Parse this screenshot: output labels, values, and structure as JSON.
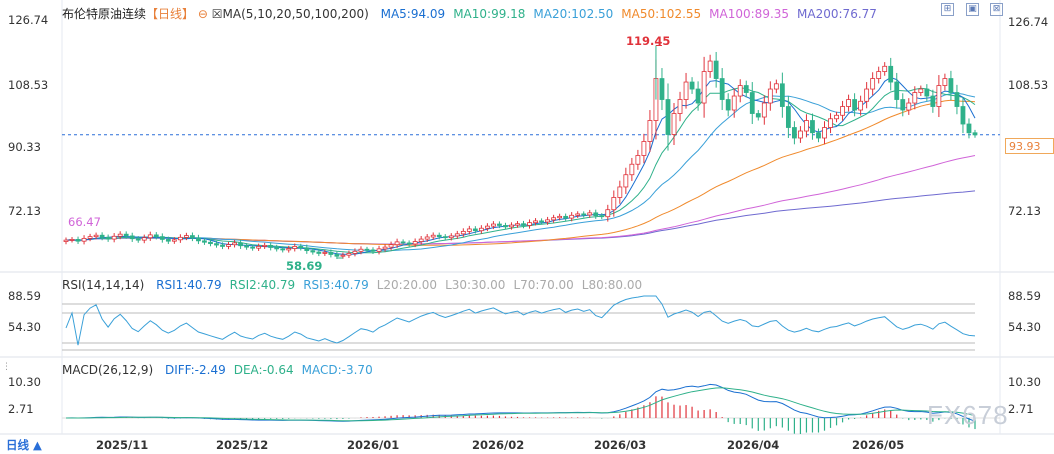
{
  "header": {
    "title": "布伦特原油连续",
    "period": "【日线】",
    "ma_label": "MA(5,10,20,50,100,200)",
    "ma": [
      {
        "text": "MA5:94.09",
        "color": "#1a6fd1"
      },
      {
        "text": "MA10:99.18",
        "color": "#2fb18a"
      },
      {
        "text": "MA20:102.50",
        "color": "#3aa0d8"
      },
      {
        "text": "MA50:102.55",
        "color": "#f08a2c"
      },
      {
        "text": "MA100:89.35",
        "color": "#d064d8"
      },
      {
        "text": "MA200:76.77",
        "color": "#6f6ad0"
      }
    ]
  },
  "toolbar": {
    "icons": [
      "expand-icon",
      "grid-icon",
      "close-icon"
    ]
  },
  "price_axis": {
    "ticks": [
      "126.74",
      "108.53",
      "90.33",
      "72.13"
    ],
    "last_price": "93.93"
  },
  "annotations": {
    "high": "119.45",
    "low": "58.69",
    "left": "66.47"
  },
  "rsi": {
    "label": "RSI(14,14,14)",
    "items": [
      {
        "text": "RSI1:40.79",
        "color": "#1a6fd1"
      },
      {
        "text": "RSI2:40.79",
        "color": "#2fb18a"
      },
      {
        "text": "RSI3:40.79",
        "color": "#3aa0d8"
      },
      {
        "text": "L20:20.00",
        "color": "#aaaaaa"
      },
      {
        "text": "L30:30.00",
        "color": "#aaaaaa"
      },
      {
        "text": "L70:70.00",
        "color": "#aaaaaa"
      },
      {
        "text": "L80:80.00",
        "color": "#aaaaaa"
      }
    ],
    "ticks": [
      "88.59",
      "54.30"
    ]
  },
  "macd": {
    "label": "MACD(26,12,9)",
    "items": [
      {
        "text": "DIFF:-2.49",
        "color": "#1a6fd1"
      },
      {
        "text": "DEA:-0.64",
        "color": "#2fb18a"
      },
      {
        "text": "MACD:-3.70",
        "color": "#3aa0d8"
      }
    ],
    "ticks": [
      "10.30",
      "2.71"
    ]
  },
  "time_axis": [
    "2025/11",
    "2025/12",
    "2026/01",
    "2026/02",
    "2026/03",
    "2026/04",
    "2026/05"
  ],
  "watermark": "FX678",
  "chart_data": {
    "type": "candlestick",
    "title": "布伦特原油连续",
    "y_ticks": [
      126.74,
      108.53,
      90.33,
      72.13
    ],
    "last_price": 93.93,
    "high": 119.45,
    "low": 58.69,
    "ma_values": {
      "MA5": 94.09,
      "MA10": 99.18,
      "MA20": 102.5,
      "MA50": 102.55,
      "MA100": 89.35,
      "MA200": 76.77
    },
    "closes_approx": [
      63.8,
      64.0,
      63.5,
      64.3,
      64.8,
      65.2,
      64.6,
      64.1,
      64.9,
      65.5,
      65.0,
      64.2,
      63.8,
      64.5,
      65.3,
      64.8,
      64.0,
      63.5,
      63.9,
      64.6,
      65.1,
      64.4,
      63.6,
      63.2,
      62.8,
      62.4,
      62.0,
      62.5,
      63.0,
      62.2,
      61.8,
      61.5,
      62.0,
      62.3,
      61.7,
      61.3,
      61.0,
      61.4,
      62.0,
      61.6,
      60.8,
      60.4,
      60.0,
      60.3,
      59.7,
      59.2,
      59.5,
      60.0,
      60.6,
      61.2,
      61.0,
      60.6,
      61.3,
      61.8,
      62.5,
      63.3,
      63.0,
      62.7,
      63.4,
      64.1,
      64.7,
      65.2,
      64.8,
      64.5,
      65.0,
      65.6,
      66.3,
      67.0,
      66.5,
      67.2,
      67.8,
      68.4,
      68.0,
      67.6,
      68.1,
      68.5,
      68.0,
      68.8,
      69.3,
      69.0,
      69.6,
      70.2,
      70.6,
      70.1,
      70.9,
      71.3,
      71.0,
      71.6,
      70.8,
      70.5,
      72.5,
      76.0,
      79.0,
      82.5,
      85.5,
      88.0,
      92.0,
      98.0,
      110.0,
      104.0,
      94.0,
      100.0,
      104.0,
      109.0,
      107.0,
      103.0,
      112.0,
      115.0,
      110.0,
      104.0,
      101.0,
      105.0,
      108.0,
      106.0,
      100.0,
      99.0,
      103.0,
      107.0,
      108.5,
      102.0,
      96.0,
      93.0,
      95.0,
      98.0,
      94.5,
      93.0,
      96.0,
      98.5,
      99.5,
      102.0,
      104.0,
      101.0,
      103.5,
      107.0,
      110.0,
      112.0,
      113.5,
      109.0,
      104.0,
      101.0,
      103.0,
      106.0,
      107.0,
      105.0,
      102.0,
      108.0,
      110.0,
      106.0,
      102.0,
      97.0,
      94.5,
      93.9
    ]
  }
}
